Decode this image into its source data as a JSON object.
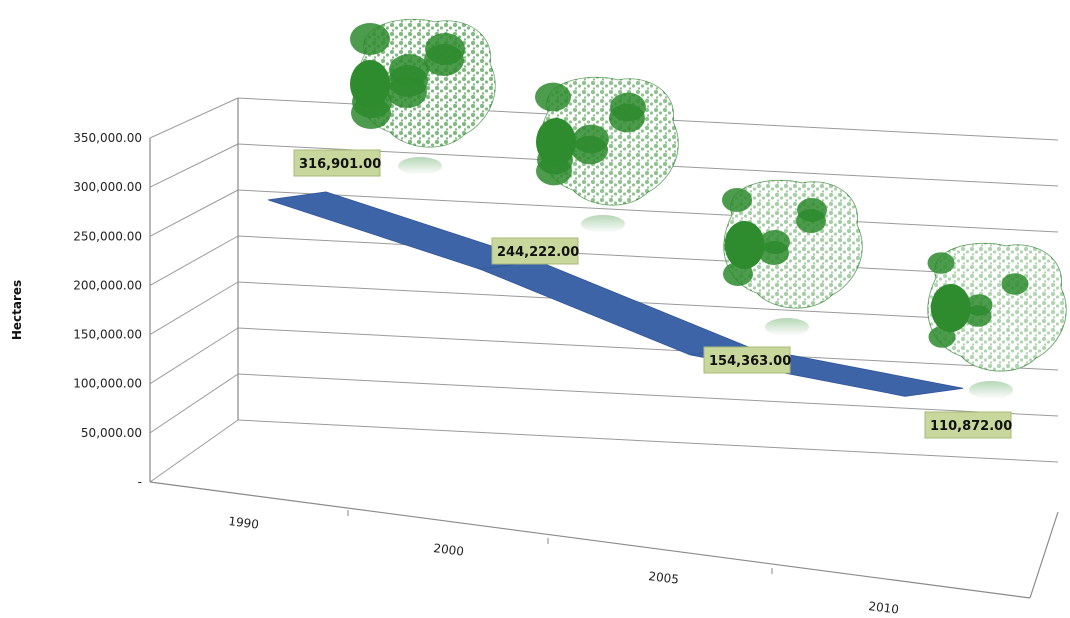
{
  "chart_data": {
    "type": "line",
    "style": "3d-ribbon",
    "title": "",
    "xlabel": "",
    "ylabel": "Hectares",
    "ylim": [
      0,
      350000
    ],
    "y_ticks": [
      "-",
      "50,000.00",
      "100,000.00",
      "150,000.00",
      "200,000.00",
      "250,000.00",
      "300,000.00",
      "350,000.00"
    ],
    "categories": [
      "1990",
      "2000",
      "2005",
      "2010"
    ],
    "values": [
      316901,
      244222,
      154363,
      110872
    ],
    "data_labels": [
      "316,901.00",
      "244,222.00",
      "154,363.00",
      "110,872.00"
    ],
    "grid": true,
    "legend": "none",
    "colors": {
      "series": "#3e64a8",
      "label_bg": "#c8d89c",
      "map_forest": "#2e8b2e"
    },
    "inset_images": [
      "forest-cover-map-1990",
      "forest-cover-map-2000",
      "forest-cover-map-2005",
      "forest-cover-map-2010"
    ]
  }
}
